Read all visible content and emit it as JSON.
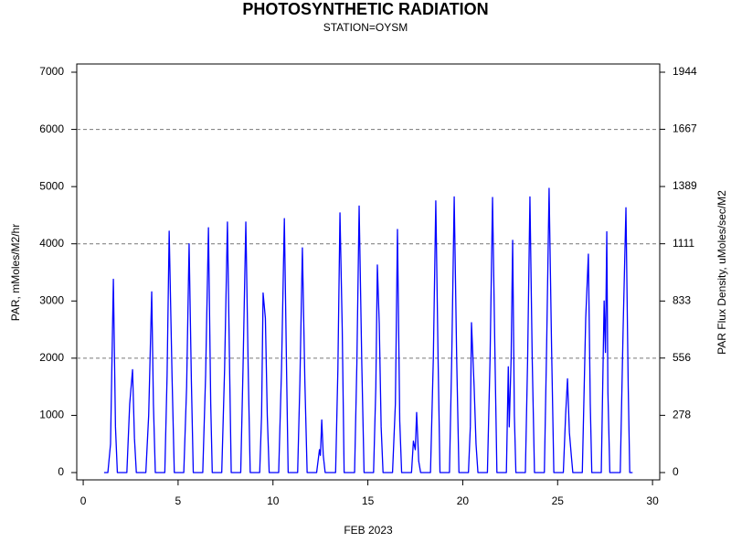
{
  "chart_data": {
    "type": "line",
    "title": "PHOTOSYNTHETIC RADIATION",
    "subtitle": "STATION=OYSM",
    "x_label": "FEB 2023",
    "y_label": "PAR, mMoles/M2/hr",
    "y2_label": "PAR Flux Density, uMoles/sec/M2",
    "xlim": [
      -0.34,
      30.38
    ],
    "xticks": [
      0,
      5,
      10,
      15,
      20,
      25,
      30
    ],
    "ylim": [
      -128,
      7144
    ],
    "yticks": [
      0,
      1000,
      2000,
      3000,
      4000,
      5000,
      6000,
      7000
    ],
    "y2lim": [
      -35.5,
      1984
    ],
    "y2ticks": [
      0,
      278,
      556,
      833,
      1111,
      1389,
      1667,
      1944
    ],
    "grid_lines": [
      2000,
      4000,
      6000
    ],
    "x": [
      1.1,
      1.3,
      1.44,
      1.59,
      1.7,
      1.8,
      2.3,
      2.45,
      2.6,
      2.7,
      2.8,
      3.3,
      3.45,
      3.61,
      3.7,
      3.8,
      4.3,
      4.42,
      4.53,
      4.68,
      4.8,
      5.3,
      5.45,
      5.58,
      5.7,
      5.8,
      6.3,
      6.45,
      6.6,
      6.72,
      6.8,
      7.3,
      7.45,
      7.6,
      7.72,
      7.8,
      8.3,
      8.42,
      8.57,
      8.7,
      8.8,
      9.3,
      9.4,
      9.48,
      9.6,
      9.7,
      9.8,
      10.3,
      10.45,
      10.6,
      10.72,
      10.8,
      11.3,
      11.42,
      11.55,
      11.68,
      11.8,
      12.3,
      12.45,
      12.5,
      12.57,
      12.65,
      12.75,
      13.3,
      13.42,
      13.53,
      13.65,
      13.75,
      14.3,
      14.42,
      14.54,
      14.68,
      14.8,
      15.3,
      15.42,
      15.5,
      15.6,
      15.7,
      15.8,
      16.3,
      16.45,
      16.56,
      16.68,
      16.78,
      17.3,
      17.4,
      17.5,
      17.57,
      17.68,
      17.78,
      18.3,
      18.45,
      18.58,
      18.7,
      18.8,
      19.3,
      19.42,
      19.55,
      19.68,
      19.8,
      20.3,
      20.4,
      20.46,
      20.6,
      20.7,
      20.8,
      21.3,
      21.44,
      21.57,
      21.7,
      21.8,
      22.3,
      22.4,
      22.45,
      22.55,
      22.63,
      22.72,
      22.8,
      23.3,
      23.42,
      23.54,
      23.66,
      23.78,
      24.3,
      24.42,
      24.55,
      24.68,
      24.8,
      25.3,
      25.42,
      25.52,
      25.62,
      25.72,
      25.8,
      26.3,
      26.48,
      26.62,
      26.72,
      26.8,
      27.3,
      27.45,
      27.52,
      27.59,
      27.65,
      27.75,
      28.3,
      28.45,
      28.6,
      28.72,
      28.8,
      28.95
    ],
    "series": [
      {
        "color": "#0000ff",
        "values": [
          0,
          0,
          500,
          3380,
          800,
          0,
          0,
          1200,
          1800,
          600,
          0,
          0,
          1000,
          3160,
          1200,
          0,
          0,
          1700,
          4220,
          1700,
          0,
          0,
          1500,
          4000,
          1600,
          0,
          0,
          1700,
          4280,
          1200,
          0,
          0,
          1800,
          4380,
          1700,
          0,
          0,
          1800,
          4380,
          1700,
          0,
          0,
          1000,
          3140,
          2700,
          1000,
          0,
          0,
          1800,
          4440,
          1700,
          0,
          0,
          1600,
          3930,
          1600,
          0,
          0,
          400,
          300,
          920,
          300,
          0,
          0,
          1800,
          4540,
          2500,
          0,
          0,
          1900,
          4660,
          1900,
          0,
          0,
          1500,
          3630,
          2600,
          800,
          0,
          0,
          1200,
          4250,
          900,
          0,
          0,
          550,
          400,
          1050,
          200,
          0,
          0,
          2000,
          4750,
          2000,
          0,
          0,
          2000,
          4820,
          2000,
          0,
          0,
          800,
          2620,
          1500,
          500,
          0,
          0,
          2000,
          4810,
          2000,
          0,
          0,
          1850,
          800,
          2000,
          4060,
          1000,
          0,
          0,
          2000,
          4820,
          2000,
          0,
          0,
          2200,
          4970,
          2200,
          0,
          0,
          1000,
          1640,
          700,
          300,
          0,
          0,
          2700,
          3820,
          1200,
          0,
          0,
          3000,
          2100,
          4210,
          1400,
          0,
          0,
          2500,
          4630,
          1500,
          0,
          0
        ]
      }
    ]
  }
}
